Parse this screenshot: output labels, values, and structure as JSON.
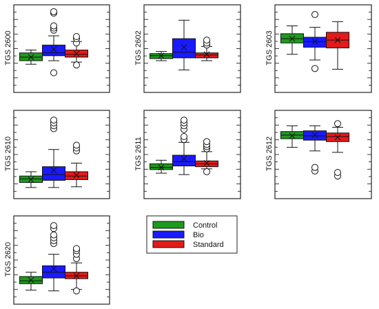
{
  "colors": {
    "Control": "#1e9a1e",
    "Bio": "#1a1aff",
    "Standard": "#e41a1a",
    "mean_marker": "#111111"
  },
  "chart_data": [
    {
      "type": "box",
      "title": "TGS 2600",
      "ylim": [
        0,
        100
      ],
      "categories": [
        "Control",
        "Bio",
        "Standard"
      ],
      "series": [
        {
          "name": "Control",
          "whisker_low": 28,
          "q1": 33,
          "median": 38,
          "q3": 44,
          "whisker_high": 48,
          "mean": 38,
          "outliers": []
        },
        {
          "name": "Bio",
          "whisker_low": 33,
          "q1": 40,
          "median": 44,
          "q3": 55,
          "whisker_high": 68,
          "mean": 49,
          "outliers": [
            16,
            76,
            79,
            82,
            100,
            102
          ]
        },
        {
          "name": "Standard",
          "whisker_low": 31,
          "q1": 38,
          "median": 42,
          "q3": 48,
          "whisker_high": 60,
          "mean": 43,
          "outliers": [
            27,
            58,
            64,
            67
          ]
        }
      ]
    },
    {
      "type": "box",
      "title": "TGS 2602",
      "ylim": [
        0,
        100
      ],
      "categories": [
        "Control",
        "Bio",
        "Standard"
      ],
      "series": [
        {
          "name": "Control",
          "whisker_low": 33,
          "q1": 36,
          "median": 40,
          "q3": 43,
          "whisker_high": 46,
          "mean": 40,
          "outliers": []
        },
        {
          "name": "Bio",
          "whisker_low": 20,
          "q1": 37,
          "median": 45,
          "q3": 64,
          "whisker_high": 90,
          "mean": 52,
          "outliers": []
        },
        {
          "name": "Standard",
          "whisker_low": 33,
          "q1": 37,
          "median": 41,
          "q3": 44,
          "whisker_high": 53,
          "mean": 42,
          "outliers": [
            55,
            58,
            62
          ]
        }
      ]
    },
    {
      "type": "box",
      "title": "TGS 2603",
      "ylim": [
        0,
        100
      ],
      "categories": [
        "Control",
        "Bio",
        "Standard"
      ],
      "series": [
        {
          "name": "Control",
          "whisker_low": 42,
          "q1": 58,
          "median": 64,
          "q3": 71,
          "whisker_high": 82,
          "mean": 64,
          "outliers": []
        },
        {
          "name": "Bio",
          "whisker_low": 34,
          "q1": 52,
          "median": 60,
          "q3": 66,
          "whisker_high": 80,
          "mean": 60,
          "outliers": [
            22,
            98
          ]
        },
        {
          "name": "Standard",
          "whisker_low": 21,
          "q1": 51,
          "median": 62,
          "q3": 73,
          "whisker_high": 88,
          "mean": 62,
          "outliers": []
        }
      ]
    },
    {
      "type": "box",
      "title": "TGS 2610",
      "ylim": [
        0,
        100
      ],
      "categories": [
        "Control",
        "Bio",
        "Standard"
      ],
      "series": [
        {
          "name": "Control",
          "whisker_low": 4,
          "q1": 11,
          "median": 16,
          "q3": 20,
          "whisker_high": 26,
          "mean": 15,
          "outliers": []
        },
        {
          "name": "Bio",
          "whisker_low": 4,
          "q1": 14,
          "median": 22,
          "q3": 33,
          "whisker_high": 57,
          "mean": 28,
          "outliers": [
            86,
            90,
            94,
            98
          ]
        },
        {
          "name": "Standard",
          "whisker_low": 5,
          "q1": 15,
          "median": 20,
          "q3": 26,
          "whisker_high": 38,
          "mean": 21,
          "outliers": [
            55,
            59,
            63
          ]
        }
      ]
    },
    {
      "type": "box",
      "title": "TGS 2611",
      "ylim": [
        0,
        100
      ],
      "categories": [
        "Control",
        "Bio",
        "Standard"
      ],
      "series": [
        {
          "name": "Control",
          "whisker_low": 24,
          "q1": 29,
          "median": 32,
          "q3": 37,
          "whisker_high": 42,
          "mean": 32,
          "outliers": []
        },
        {
          "name": "Bio",
          "whisker_low": 22,
          "q1": 34,
          "median": 40,
          "q3": 49,
          "whisker_high": 67,
          "mean": 44,
          "outliers": [
            71,
            75,
            85,
            90,
            94,
            98
          ]
        },
        {
          "name": "Standard",
          "whisker_low": 30,
          "q1": 33,
          "median": 37,
          "q3": 41,
          "whisker_high": 54,
          "mean": 38,
          "outliers": [
            26,
            58,
            61,
            64,
            68
          ]
        }
      ]
    },
    {
      "type": "box",
      "title": "TGS 2612",
      "ylim": [
        0,
        100
      ],
      "categories": [
        "Control",
        "Bio",
        "Standard"
      ],
      "series": [
        {
          "name": "Control",
          "whisker_low": 60,
          "q1": 72,
          "median": 77,
          "q3": 82,
          "whisker_high": 90,
          "mean": 76,
          "outliers": []
        },
        {
          "name": "Bio",
          "whisker_low": 55,
          "q1": 70,
          "median": 76,
          "q3": 83,
          "whisker_high": 90,
          "mean": 77,
          "outliers": [
            27,
            32
          ]
        },
        {
          "name": "Standard",
          "whisker_low": 53,
          "q1": 68,
          "median": 75,
          "q3": 80,
          "whisker_high": 88,
          "mean": 74,
          "outliers": [
            20,
            25,
            93
          ]
        }
      ]
    },
    {
      "type": "box",
      "title": "TGS 2620",
      "ylim": [
        0,
        100
      ],
      "categories": [
        "Control",
        "Bio",
        "Standard"
      ],
      "series": [
        {
          "name": "Control",
          "whisker_low": 8,
          "q1": 17,
          "median": 21,
          "q3": 27,
          "whisker_high": 33,
          "mean": 22,
          "outliers": []
        },
        {
          "name": "Bio",
          "whisker_low": 7,
          "q1": 25,
          "median": 33,
          "q3": 42,
          "whisker_high": 58,
          "mean": 38,
          "outliers": [
            73,
            77,
            81,
            85,
            94,
            98
          ]
        },
        {
          "name": "Standard",
          "whisker_low": 9,
          "q1": 24,
          "median": 28,
          "q3": 33,
          "whisker_high": 46,
          "mean": 28,
          "outliers": [
            7,
            52,
            58,
            63,
            66
          ]
        }
      ]
    }
  ],
  "legend": {
    "placement": "bottom-center",
    "entries": [
      "Control",
      "Bio",
      "Standard"
    ]
  }
}
